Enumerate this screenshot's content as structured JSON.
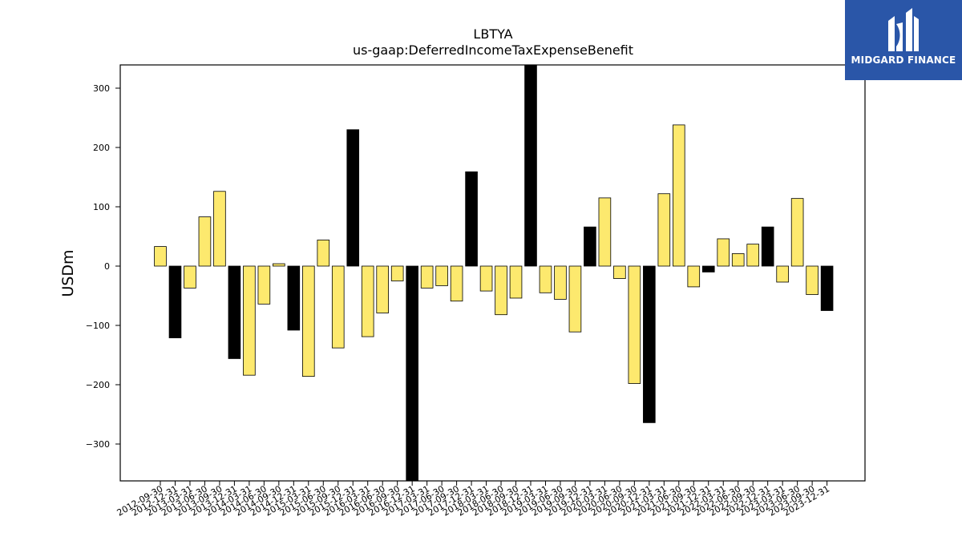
{
  "chart_data": {
    "type": "bar",
    "title": "LBTYA",
    "subtitle": "us-gaap:DeferredIncomeTaxExpenseBenefit",
    "ylabel": "USDm",
    "xlabel": "",
    "ylim": [
      -363,
      340
    ],
    "yticks": [
      -300,
      -200,
      -100,
      0,
      100,
      200,
      300
    ],
    "grid": false,
    "colors": {
      "quarter": "#fde96e",
      "year_end": "#000000",
      "edge": "#000000"
    },
    "categories": [
      "2012-09-30",
      "2012-12-31",
      "2013-03-31",
      "2013-06-30",
      "2013-09-30",
      "2013-12-31",
      "2014-03-31",
      "2014-06-30",
      "2014-09-30",
      "2014-12-31",
      "2015-03-31",
      "2015-06-30",
      "2015-09-30",
      "2015-12-31",
      "2016-03-31",
      "2016-06-30",
      "2016-09-30",
      "2016-12-31",
      "2017-03-31",
      "2017-06-30",
      "2017-09-30",
      "2017-12-31",
      "2018-03-31",
      "2018-06-30",
      "2018-09-30",
      "2018-12-31",
      "2019-03-31",
      "2019-06-30",
      "2019-09-30",
      "2019-12-31",
      "2020-03-31",
      "2020-06-30",
      "2020-09-30",
      "2020-12-31",
      "2021-03-31",
      "2021-06-30",
      "2021-09-30",
      "2021-12-31",
      "2022-03-31",
      "2022-06-30",
      "2022-09-30",
      "2022-12-31",
      "2023-03-31",
      "2023-06-30",
      "2023-09-30",
      "2023-12-31"
    ],
    "values": [
      33,
      -121,
      -37,
      83,
      126,
      -156,
      -184,
      -64,
      4,
      -108,
      -186,
      44,
      -138,
      230,
      -119,
      -79,
      -25,
      -363,
      -37,
      -33,
      -59,
      159,
      -42,
      -82,
      -54,
      340,
      -45,
      -56,
      -111,
      66,
      115,
      -21,
      -198,
      -264,
      122,
      238,
      -35,
      -10,
      46,
      21,
      37,
      66,
      -27,
      114,
      -48,
      -75
    ]
  },
  "logo": {
    "text": "MIDGARD FINANCE",
    "icon": "midgard-logo-icon"
  }
}
